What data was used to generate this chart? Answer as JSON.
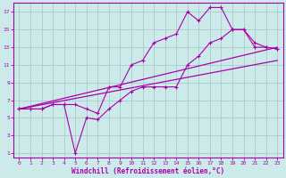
{
  "xlabel": "Windchill (Refroidissement éolien,°C)",
  "bg_color": "#cceaea",
  "grid_color": "#aacccc",
  "line_color": "#aa00aa",
  "xlim": [
    -0.5,
    23.5
  ],
  "ylim": [
    0.5,
    18
  ],
  "xticks": [
    0,
    1,
    2,
    3,
    4,
    5,
    6,
    7,
    8,
    9,
    10,
    11,
    12,
    13,
    14,
    15,
    16,
    17,
    18,
    19,
    20,
    21,
    22,
    23
  ],
  "yticks": [
    1,
    3,
    5,
    7,
    9,
    11,
    13,
    15,
    17
  ],
  "series": [
    {
      "x": [
        0,
        1,
        2,
        3,
        4,
        5,
        6,
        7,
        8,
        9,
        10,
        11,
        12,
        13,
        14,
        15,
        16,
        17,
        18,
        19,
        20,
        21,
        22,
        23
      ],
      "y": [
        6,
        6,
        6,
        6.5,
        6.5,
        6.5,
        6,
        5.5,
        8.5,
        8.5,
        11,
        11.5,
        13.5,
        14,
        14.5,
        17,
        16,
        17.5,
        17.5,
        15,
        15,
        13,
        13,
        12.8
      ],
      "marker": true
    },
    {
      "x": [
        0,
        1,
        2,
        3,
        4,
        5,
        6,
        7,
        8,
        9,
        10,
        11,
        12,
        13,
        14,
        15,
        16,
        17,
        18,
        19,
        20,
        21,
        22,
        23
      ],
      "y": [
        6,
        6,
        6,
        6.5,
        6.5,
        1,
        5,
        4.8,
        6,
        7,
        8,
        8.5,
        8.5,
        8.5,
        8.5,
        11,
        12,
        13.5,
        14,
        15,
        15,
        13.5,
        13,
        12.8
      ],
      "marker": true
    },
    {
      "x": [
        0,
        23
      ],
      "y": [
        6,
        13
      ],
      "marker": false
    },
    {
      "x": [
        0,
        23
      ],
      "y": [
        6,
        11.5
      ],
      "marker": false
    }
  ]
}
